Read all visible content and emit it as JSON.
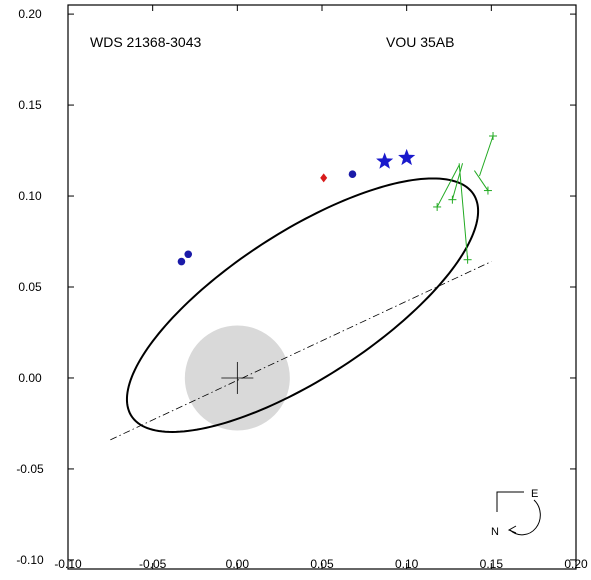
{
  "chart_data": {
    "type": "scatter",
    "title_left": "WDS 21368-3043",
    "title_right": "VOU  35AB",
    "xlim": [
      -0.1,
      0.2
    ],
    "ylim": [
      -0.105,
      0.205
    ],
    "x_ticks": [
      -0.1,
      -0.05,
      0.0,
      0.05,
      0.1,
      0.15,
      0.2
    ],
    "x_tick_labels": [
      "-0.10",
      "-0.05",
      "0.00",
      "0.05",
      "0.10",
      "0.15",
      "0.20"
    ],
    "y_ticks": [
      -0.1,
      -0.05,
      0.0,
      0.05,
      0.1,
      0.15,
      0.2
    ],
    "y_tick_labels": [
      "-0.10",
      "-0.05",
      "0.00",
      "0.05",
      "0.10",
      "0.15",
      "0.20"
    ],
    "grid": false,
    "orbit_ellipse": {
      "cx": 0.0385,
      "cy": 0.04,
      "a": 0.118,
      "b": 0.041,
      "rotation_deg": 30.6
    },
    "line_of_apsides": {
      "x": [
        -0.075,
        0.15
      ],
      "y": [
        -0.034,
        0.064
      ]
    },
    "primary_star": {
      "x": 0.0,
      "y": 0.0,
      "disk_radius": 0.031
    },
    "series": [
      {
        "marker": "star",
        "color": "#1a1acc",
        "points": [
          {
            "x": 0.087,
            "y": 0.119
          },
          {
            "x": 0.1,
            "y": 0.121
          }
        ]
      },
      {
        "marker": "dot",
        "color": "#1a1aa8",
        "points": [
          {
            "x": -0.033,
            "y": 0.064
          },
          {
            "x": -0.029,
            "y": 0.068
          },
          {
            "x": 0.068,
            "y": 0.112
          }
        ]
      },
      {
        "marker": "diamond",
        "color": "#d81b1b",
        "points": [
          {
            "x": 0.051,
            "y": 0.11
          }
        ]
      },
      {
        "marker": "plus-with-residual",
        "color": "#22aa22",
        "points": [
          {
            "x": 0.118,
            "y": 0.094,
            "ox": 0.131,
            "oy": 0.117
          },
          {
            "x": 0.127,
            "y": 0.098,
            "ox": 0.133,
            "oy": 0.118
          },
          {
            "x": 0.136,
            "y": 0.065,
            "ox": 0.131,
            "oy": 0.118
          },
          {
            "x": 0.151,
            "y": 0.133,
            "ox": 0.143,
            "oy": 0.111
          },
          {
            "x": 0.148,
            "y": 0.103,
            "ox": 0.14,
            "oy": 0.114
          }
        ]
      }
    ],
    "compass": {
      "east": "E",
      "north": "N"
    }
  }
}
